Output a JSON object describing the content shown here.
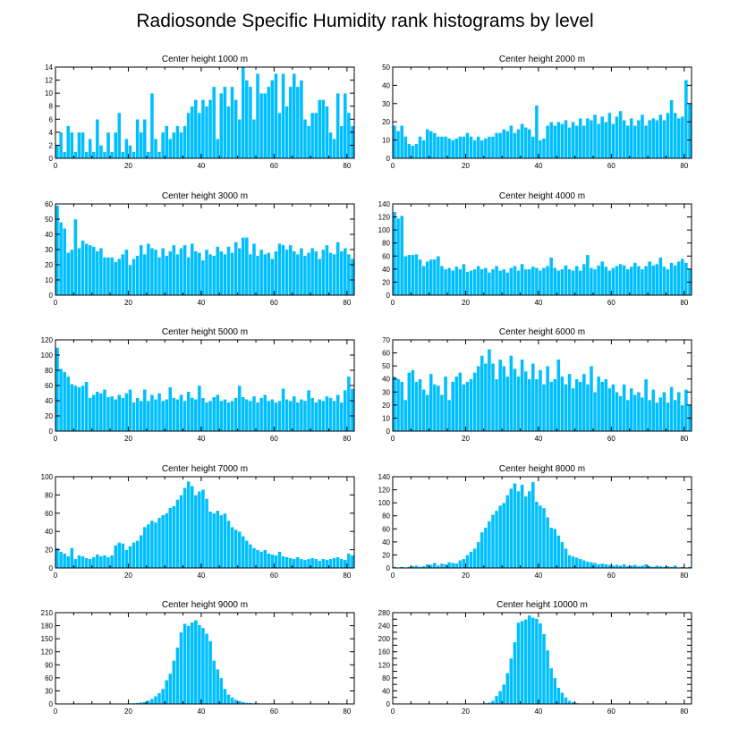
{
  "title": "Radiosonde Specific Humidity rank histograms by level",
  "colors": {
    "bar": "#00bfff",
    "bar_edge": "#ffffff",
    "axis": "#000000"
  },
  "chart_data": [
    {
      "type": "bar",
      "title": "Center height 1000 m",
      "xlim": [
        0,
        82
      ],
      "ylim": [
        0,
        14
      ],
      "xticks": [
        0,
        20,
        40,
        60,
        80
      ],
      "yticks": [
        0,
        2,
        4,
        6,
        8,
        10,
        12,
        14
      ],
      "values": [
        2,
        4,
        1,
        5,
        4,
        1,
        4,
        4,
        1,
        3,
        1,
        6,
        2,
        1,
        4,
        1,
        4,
        7,
        1,
        3,
        2,
        1,
        6,
        4,
        6,
        1,
        10,
        3,
        1,
        4,
        5,
        3,
        4,
        5,
        4,
        5,
        7,
        8,
        9,
        7,
        9,
        8,
        9,
        11,
        3,
        10,
        11,
        8,
        11,
        9,
        6,
        14,
        12,
        11,
        6,
        13,
        10,
        10,
        11,
        12,
        13,
        7,
        13,
        8,
        11,
        13,
        11,
        12,
        6,
        5,
        7,
        7,
        9,
        9,
        8,
        4,
        3,
        10,
        5,
        10,
        7,
        5
      ],
      "xlabel": "",
      "ylabel": ""
    },
    {
      "type": "bar",
      "title": "Center height 2000 m",
      "xlim": [
        0,
        82
      ],
      "ylim": [
        0,
        50
      ],
      "xticks": [
        0,
        20,
        40,
        60,
        80
      ],
      "yticks": [
        0,
        10,
        20,
        30,
        40,
        50
      ],
      "values": [
        18,
        15,
        18,
        12,
        8,
        7,
        8,
        12,
        10,
        16,
        15,
        14,
        12,
        12,
        12,
        11,
        10,
        11,
        12,
        12,
        14,
        12,
        10,
        12,
        10,
        11,
        12,
        12,
        14,
        14,
        16,
        15,
        18,
        14,
        16,
        19,
        17,
        16,
        12,
        29,
        10,
        11,
        18,
        20,
        18,
        20,
        19,
        21,
        17,
        20,
        18,
        22,
        18,
        22,
        21,
        24,
        19,
        23,
        20,
        25,
        19,
        23,
        26,
        21,
        18,
        22,
        18,
        21,
        24,
        18,
        21,
        22,
        21,
        24,
        21,
        25,
        32,
        25,
        22,
        23,
        43,
        30
      ],
      "xlabel": "",
      "ylabel": ""
    },
    {
      "type": "bar",
      "title": "Center height 3000 m",
      "xlim": [
        0,
        82
      ],
      "ylim": [
        0,
        60
      ],
      "xticks": [
        0,
        20,
        40,
        60,
        80
      ],
      "yticks": [
        0,
        10,
        20,
        30,
        40,
        50,
        60
      ],
      "values": [
        59,
        48,
        44,
        28,
        30,
        50,
        31,
        36,
        34,
        33,
        32,
        29,
        31,
        25,
        25,
        25,
        22,
        24,
        27,
        30,
        20,
        24,
        26,
        33,
        27,
        34,
        31,
        30,
        25,
        31,
        26,
        29,
        33,
        27,
        31,
        33,
        25,
        34,
        29,
        28,
        23,
        30,
        27,
        26,
        32,
        29,
        27,
        32,
        28,
        35,
        31,
        38,
        38,
        27,
        34,
        26,
        30,
        27,
        28,
        24,
        29,
        34,
        33,
        30,
        33,
        29,
        27,
        31,
        26,
        28,
        31,
        29,
        24,
        30,
        33,
        28,
        27,
        35,
        29,
        31,
        27,
        24
      ],
      "xlabel": "",
      "ylabel": ""
    },
    {
      "type": "bar",
      "title": "Center height 4000 m",
      "xlim": [
        0,
        82
      ],
      "ylim": [
        0,
        140
      ],
      "xticks": [
        0,
        20,
        40,
        60,
        80
      ],
      "yticks": [
        0,
        20,
        40,
        60,
        80,
        100,
        120,
        140
      ],
      "values": [
        128,
        118,
        122,
        60,
        62,
        62,
        63,
        55,
        45,
        52,
        55,
        55,
        60,
        45,
        40,
        42,
        38,
        44,
        40,
        48,
        36,
        38,
        40,
        45,
        40,
        42,
        35,
        40,
        45,
        38,
        40,
        35,
        42,
        45,
        38,
        48,
        40,
        40,
        44,
        42,
        38,
        42,
        45,
        58,
        42,
        38,
        40,
        46,
        40,
        38,
        45,
        38,
        48,
        62,
        42,
        40,
        46,
        52,
        44,
        38,
        42,
        45,
        48,
        46,
        40,
        44,
        50,
        45,
        40,
        45,
        52,
        46,
        48,
        58,
        44,
        40,
        50,
        46,
        52,
        56,
        50,
        40
      ],
      "xlabel": "",
      "ylabel": ""
    },
    {
      "type": "bar",
      "title": "Center height 5000 m",
      "xlim": [
        0,
        82
      ],
      "ylim": [
        0,
        120
      ],
      "xticks": [
        0,
        20,
        40,
        60,
        80
      ],
      "yticks": [
        0,
        20,
        40,
        60,
        80,
        100,
        120
      ],
      "values": [
        110,
        82,
        78,
        72,
        62,
        60,
        58,
        60,
        65,
        44,
        48,
        52,
        50,
        55,
        45,
        46,
        42,
        48,
        44,
        50,
        55,
        38,
        44,
        40,
        55,
        40,
        48,
        42,
        50,
        40,
        42,
        58,
        44,
        42,
        48,
        40,
        52,
        44,
        42,
        60,
        44,
        38,
        40,
        45,
        48,
        40,
        42,
        38,
        40,
        44,
        60,
        45,
        42,
        40,
        46,
        38,
        44,
        48,
        40,
        42,
        38,
        40,
        56,
        42,
        40,
        46,
        38,
        42,
        40,
        54,
        44,
        38,
        42,
        40,
        46,
        44,
        40,
        48,
        38,
        54,
        72,
        56
      ],
      "xlabel": "",
      "ylabel": ""
    },
    {
      "type": "bar",
      "title": "Center height 6000 m",
      "xlim": [
        0,
        82
      ],
      "ylim": [
        0,
        70
      ],
      "xticks": [
        0,
        20,
        40,
        60,
        80
      ],
      "yticks": [
        0,
        10,
        20,
        30,
        40,
        50,
        60,
        70
      ],
      "values": [
        42,
        40,
        38,
        24,
        45,
        47,
        38,
        40,
        32,
        28,
        44,
        36,
        35,
        28,
        42,
        24,
        38,
        42,
        45,
        36,
        38,
        40,
        45,
        50,
        58,
        52,
        63,
        52,
        40,
        55,
        50,
        42,
        58,
        48,
        42,
        55,
        46,
        40,
        52,
        40,
        47,
        36,
        50,
        38,
        40,
        55,
        42,
        36,
        44,
        33,
        40,
        38,
        44,
        36,
        50,
        30,
        42,
        38,
        40,
        33,
        36,
        30,
        27,
        36,
        24,
        33,
        28,
        30,
        26,
        40,
        24,
        32,
        22,
        26,
        30,
        22,
        34,
        24,
        30,
        20,
        32,
        20
      ],
      "xlabel": "",
      "ylabel": ""
    },
    {
      "type": "bar",
      "title": "Center height 7000 m",
      "xlim": [
        0,
        82
      ],
      "ylim": [
        0,
        100
      ],
      "xticks": [
        0,
        20,
        40,
        60,
        80
      ],
      "yticks": [
        0,
        20,
        40,
        60,
        80,
        100
      ],
      "values": [
        22,
        18,
        16,
        13,
        22,
        10,
        14,
        13,
        11,
        10,
        12,
        15,
        13,
        14,
        12,
        14,
        25,
        28,
        27,
        20,
        24,
        28,
        30,
        36,
        45,
        48,
        52,
        50,
        55,
        58,
        60,
        66,
        68,
        75,
        80,
        88,
        95,
        90,
        80,
        84,
        86,
        76,
        62,
        60,
        63,
        58,
        60,
        52,
        45,
        42,
        40,
        35,
        30,
        26,
        22,
        20,
        18,
        20,
        16,
        15,
        14,
        18,
        13,
        12,
        11,
        10,
        12,
        10,
        9,
        10,
        11,
        10,
        8,
        10,
        9,
        10,
        11,
        12,
        10,
        9,
        16,
        14
      ],
      "xlabel": "",
      "ylabel": ""
    },
    {
      "type": "bar",
      "title": "Center height 8000 m",
      "xlim": [
        0,
        82
      ],
      "ylim": [
        0,
        140
      ],
      "xticks": [
        0,
        20,
        40,
        60,
        80
      ],
      "yticks": [
        0,
        20,
        40,
        60,
        80,
        100,
        120,
        140
      ],
      "values": [
        2,
        1,
        2,
        1,
        2,
        3,
        4,
        2,
        3,
        6,
        5,
        8,
        4,
        7,
        6,
        9,
        8,
        7,
        12,
        14,
        20,
        25,
        30,
        40,
        55,
        62,
        72,
        82,
        88,
        96,
        100,
        112,
        122,
        130,
        118,
        128,
        110,
        118,
        132,
        102,
        96,
        92,
        78,
        62,
        60,
        50,
        40,
        30,
        20,
        18,
        16,
        14,
        12,
        10,
        9,
        8,
        6,
        7,
        6,
        5,
        4,
        5,
        4,
        6,
        3,
        4,
        5,
        3,
        4,
        6,
        3,
        2,
        4,
        3,
        2,
        3,
        2,
        4,
        1,
        2,
        1,
        2
      ],
      "xlabel": "",
      "ylabel": ""
    },
    {
      "type": "bar",
      "title": "Center height 9000 m",
      "xlim": [
        0,
        82
      ],
      "ylim": [
        0,
        210
      ],
      "xticks": [
        0,
        20,
        40,
        60,
        80
      ],
      "yticks": [
        0,
        30,
        60,
        90,
        120,
        150,
        180,
        210
      ],
      "values": [
        0,
        0,
        0,
        0,
        0,
        0,
        0,
        0,
        0,
        0,
        0,
        0,
        0,
        0,
        0,
        0,
        0,
        0,
        0,
        1,
        2,
        2,
        3,
        4,
        5,
        8,
        12,
        18,
        25,
        35,
        55,
        70,
        100,
        130,
        165,
        185,
        180,
        188,
        193,
        182,
        175,
        162,
        145,
        100,
        80,
        60,
        35,
        22,
        15,
        10,
        7,
        5,
        3,
        3,
        2,
        2,
        1,
        1,
        1,
        2,
        1,
        1,
        0,
        0,
        1,
        0,
        0,
        0,
        0,
        0,
        0,
        0,
        0,
        0,
        0,
        0,
        0,
        0,
        0,
        0,
        0,
        0
      ],
      "xlabel": "",
      "ylabel": ""
    },
    {
      "type": "bar",
      "title": "Center height 10000 m",
      "xlim": [
        0,
        82
      ],
      "ylim": [
        0,
        280
      ],
      "xticks": [
        0,
        20,
        40,
        60,
        80
      ],
      "yticks": [
        0,
        20,
        40,
        60,
        80,
        100,
        120,
        140,
        160,
        180,
        200,
        220,
        240,
        260,
        280
      ],
      "yticklabels": [
        "0",
        "40",
        "80",
        "120",
        "160",
        "200",
        "240",
        "280"
      ],
      "values": [
        0,
        0,
        0,
        0,
        0,
        0,
        0,
        0,
        0,
        0,
        0,
        0,
        0,
        0,
        0,
        0,
        0,
        0,
        0,
        0,
        0,
        0,
        0,
        0,
        1,
        3,
        5,
        10,
        25,
        40,
        60,
        95,
        140,
        190,
        250,
        255,
        260,
        272,
        265,
        262,
        248,
        215,
        165,
        110,
        80,
        50,
        35,
        20,
        10,
        6,
        3,
        2,
        1,
        1,
        0,
        1,
        0,
        0,
        0,
        0,
        0,
        0,
        0,
        0,
        0,
        0,
        0,
        0,
        0,
        0,
        0,
        0,
        0,
        0,
        0,
        0,
        0,
        0,
        0,
        0,
        0,
        0
      ],
      "xlabel": "",
      "ylabel": ""
    }
  ]
}
